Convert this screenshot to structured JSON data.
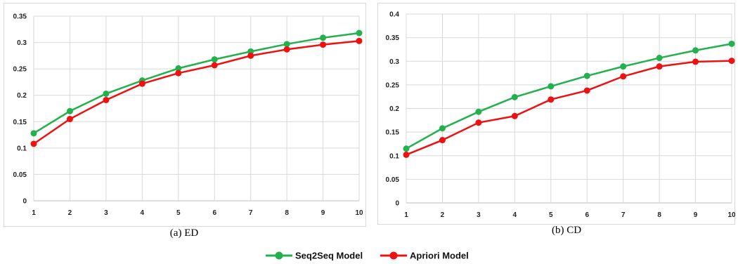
{
  "charts": [
    {
      "id": "ed",
      "caption": "(a)  ED",
      "y_ticks": [
        "0",
        "0.05",
        "0.1",
        "0.15",
        "0.2",
        "0.25",
        "0.3",
        "0.35"
      ],
      "x_ticks": [
        "1",
        "2",
        "3",
        "4",
        "5",
        "6",
        "7",
        "8",
        "9",
        "10"
      ]
    },
    {
      "id": "cd",
      "caption": "(b)  CD",
      "y_ticks": [
        "0",
        "0.05",
        "0.1",
        "0.15",
        "0.2",
        "0.25",
        "0.3",
        "0.35",
        "0.4"
      ],
      "x_ticks": [
        "1",
        "2",
        "3",
        "4",
        "5",
        "6",
        "7",
        "8",
        "9",
        "10"
      ]
    }
  ],
  "legend": {
    "seq2seq_label": "Seq2Seq Model",
    "apriori_label": "Apriori Model"
  },
  "colors": {
    "seq2seq": "#22b14c",
    "apriori": "#ee1111",
    "grid": "#d9d9d9"
  },
  "chart_data": [
    {
      "type": "line",
      "title": "(a)  ED",
      "x": [
        1,
        2,
        3,
        4,
        5,
        6,
        7,
        8,
        9,
        10
      ],
      "ylim": [
        0,
        0.35
      ],
      "grid": true,
      "series": [
        {
          "name": "Seq2Seq Model",
          "values": [
            0.128,
            0.17,
            0.203,
            0.228,
            0.251,
            0.268,
            0.283,
            0.297,
            0.309,
            0.318
          ]
        },
        {
          "name": "Apriori Model",
          "values": [
            0.108,
            0.155,
            0.191,
            0.222,
            0.242,
            0.257,
            0.275,
            0.287,
            0.296,
            0.303
          ]
        }
      ],
      "legend": "bottom"
    },
    {
      "type": "line",
      "title": "(b)  CD",
      "x": [
        1,
        2,
        3,
        4,
        5,
        6,
        7,
        8,
        9,
        10
      ],
      "ylim": [
        0,
        0.4
      ],
      "grid": true,
      "series": [
        {
          "name": "Seq2Seq Model",
          "values": [
            0.115,
            0.158,
            0.193,
            0.224,
            0.247,
            0.269,
            0.289,
            0.307,
            0.323,
            0.337
          ]
        },
        {
          "name": "Apriori Model",
          "values": [
            0.102,
            0.133,
            0.17,
            0.184,
            0.219,
            0.238,
            0.268,
            0.289,
            0.299,
            0.301
          ]
        }
      ],
      "legend": "bottom"
    }
  ]
}
